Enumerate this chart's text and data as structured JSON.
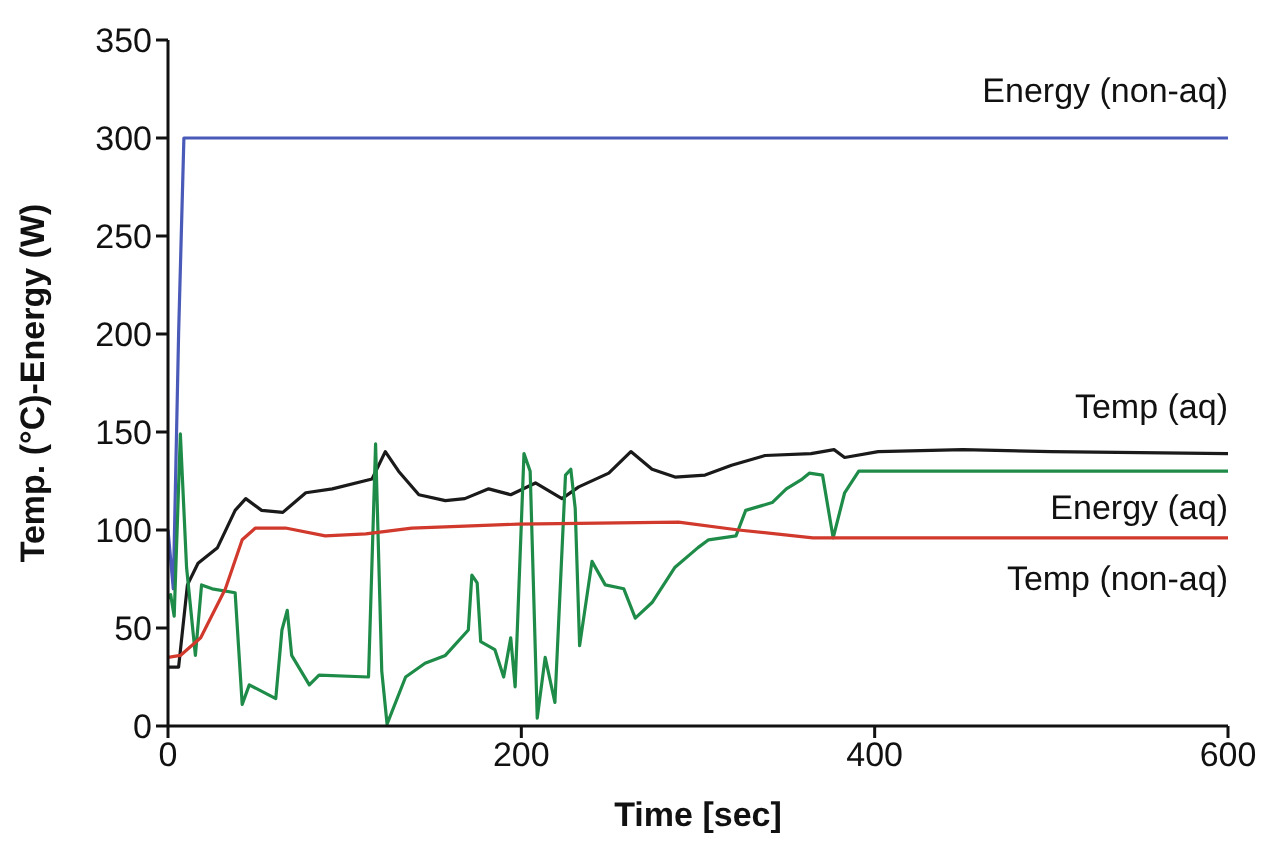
{
  "chart_data": {
    "type": "line",
    "xlabel": "Time [sec]",
    "ylabel": "Temp. (°C)-Energy (W)",
    "xlim": [
      0,
      600
    ],
    "xticks": [
      0,
      200,
      400,
      600
    ],
    "ylim": [
      0,
      350
    ],
    "yticks": [
      0,
      50,
      100,
      150,
      200,
      250,
      300,
      350
    ],
    "marker": "none",
    "line_style": "solid",
    "series": [
      {
        "name": "Energy (non-aq)",
        "color": "#4a5ab8",
        "x": [
          0,
          3,
          6,
          9,
          600
        ],
        "values": [
          100,
          70,
          200,
          300,
          300
        ]
      },
      {
        "name": "Temp (aq)",
        "color": "#1a1a1a",
        "x": [
          0,
          6,
          11,
          17,
          28,
          38,
          44,
          53,
          65,
          78,
          93,
          115.5,
          123,
          130.5,
          142,
          157,
          168,
          181.5,
          194,
          208,
          223,
          232.5,
          249.5,
          262,
          274,
          287,
          304,
          319,
          338,
          364,
          377,
          383,
          402,
          450,
          500,
          600
        ],
        "values": [
          30,
          30,
          72,
          83,
          91,
          110,
          116,
          110,
          109,
          119,
          121,
          126,
          140,
          130,
          118,
          115,
          116,
          121,
          118,
          124,
          116,
          122,
          129,
          140,
          131,
          127,
          128,
          133,
          138,
          139,
          141,
          137,
          140,
          141,
          140,
          139
        ]
      },
      {
        "name": "Energy (aq)",
        "color": "#1e8c48",
        "x": [
          0,
          1.5,
          3.5,
          7,
          10.5,
          15.5,
          19,
          25,
          38,
          42,
          46,
          61,
          64.5,
          67.5,
          70,
          80,
          85.5,
          113.5,
          117.5,
          121,
          124,
          134.5,
          145.5,
          157,
          170,
          172,
          175,
          177,
          185,
          190,
          194,
          196.5,
          201.5,
          205,
          209,
          213.5,
          219,
          225,
          228,
          230.5,
          233,
          240,
          247.5,
          258,
          264.5,
          274,
          287,
          300,
          306,
          321.5,
          327,
          342,
          350,
          359,
          363,
          370.5,
          376.5,
          383,
          391,
          600
        ],
        "values": [
          65,
          67,
          56,
          149,
          81,
          36,
          72,
          70,
          68,
          11,
          21,
          14,
          49,
          59,
          36,
          21,
          26,
          25,
          144,
          28,
          1,
          25,
          32,
          36,
          49,
          77,
          73,
          43,
          39,
          25,
          45,
          20,
          139,
          130,
          4,
          35,
          12,
          128,
          131,
          111,
          41,
          84,
          72,
          70,
          55,
          63,
          81,
          91,
          95,
          97,
          110,
          114,
          121,
          126,
          129,
          128,
          96,
          119,
          130,
          130
        ]
      },
      {
        "name": "Temp (non-aq)",
        "color": "#d0392b",
        "x": [
          0,
          7,
          18.5,
          32.5,
          42,
          49.5,
          66.5,
          89,
          112,
          138,
          168,
          198,
          289,
          323,
          365,
          410,
          600
        ],
        "values": [
          35,
          36,
          45,
          70,
          95,
          101,
          101,
          97,
          98,
          101,
          102,
          103,
          104,
          100,
          96,
          96,
          96
        ]
      }
    ]
  }
}
